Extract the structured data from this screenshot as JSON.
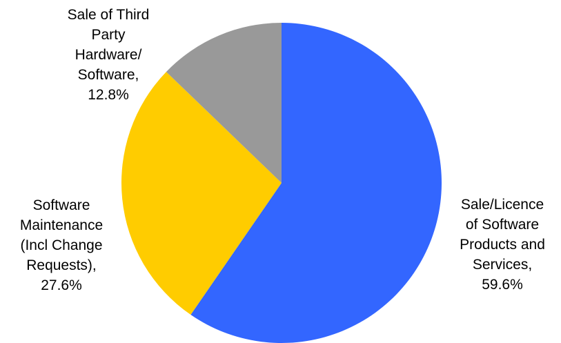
{
  "chart_data": {
    "type": "pie",
    "title": "",
    "start_angle_deg": 0,
    "direction": "clockwise",
    "slices": [
      {
        "label_lines": [
          "Sale/Licence",
          "of Software",
          "Products and",
          "Services,",
          "59.6%"
        ],
        "value": 59.6,
        "color": "#3366FF"
      },
      {
        "label_lines": [
          "Software",
          "Maintenance",
          "(Incl Change",
          "Requests),",
          "27.6%"
        ],
        "value": 27.6,
        "color": "#FFCC00"
      },
      {
        "label_lines": [
          "Sale of Third",
          "Party",
          "Hardware/",
          "Software,",
          "12.8%"
        ],
        "value": 12.8,
        "color": "#999999"
      }
    ]
  }
}
